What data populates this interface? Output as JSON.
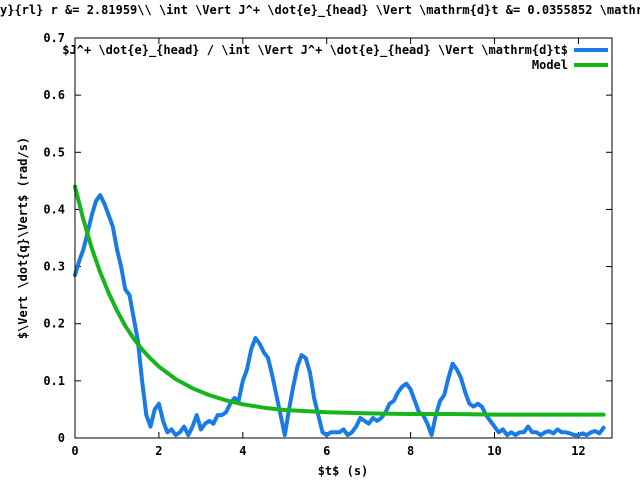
{
  "title": "y}{rl} r &= 2.81959\\\\ \\int \\Vert J^+ \\dot{e}_{head} \\Vert \\mathrm{d}t &=  0.0355852 \\mathrm",
  "chart_data": {
    "type": "line",
    "xlabel": "$t$ (s)",
    "ylabel": "$\\Vert \\dot{q}\\Vert$ (rad/s)",
    "xlim": [
      0,
      12.8
    ],
    "ylim": [
      0,
      0.7
    ],
    "xticks": [
      "0",
      "2",
      "4",
      "6",
      "8",
      "10",
      "12"
    ],
    "yticks": [
      "0",
      "0.1",
      "0.2",
      "0.3",
      "0.4",
      "0.5",
      "0.6",
      "0.7"
    ],
    "grid": false,
    "legend_position": "top-right",
    "series": [
      {
        "name": "$J^+ \\dot{e}_{head} / \\int \\Vert J^+ \\dot{e}_{head} \\Vert \\mathrm{d}t$",
        "color": "#1a7ae6",
        "x": [
          0.0,
          0.1,
          0.2,
          0.3,
          0.4,
          0.5,
          0.6,
          0.7,
          0.8,
          0.9,
          1.0,
          1.1,
          1.2,
          1.3,
          1.4,
          1.5,
          1.6,
          1.7,
          1.8,
          1.9,
          2.0,
          2.1,
          2.2,
          2.3,
          2.4,
          2.5,
          2.6,
          2.7,
          2.8,
          2.9,
          3.0,
          3.1,
          3.2,
          3.3,
          3.4,
          3.5,
          3.6,
          3.7,
          3.8,
          3.9,
          4.0,
          4.1,
          4.2,
          4.3,
          4.4,
          4.5,
          4.6,
          4.7,
          4.8,
          4.9,
          5.0,
          5.1,
          5.2,
          5.3,
          5.4,
          5.5,
          5.6,
          5.7,
          5.8,
          5.9,
          6.0,
          6.1,
          6.2,
          6.3,
          6.4,
          6.5,
          6.6,
          6.7,
          6.8,
          6.9,
          7.0,
          7.1,
          7.2,
          7.3,
          7.4,
          7.5,
          7.6,
          7.7,
          7.8,
          7.9,
          8.0,
          8.1,
          8.2,
          8.3,
          8.4,
          8.5,
          8.6,
          8.7,
          8.8,
          8.9,
          9.0,
          9.1,
          9.2,
          9.3,
          9.4,
          9.5,
          9.6,
          9.7,
          9.8,
          9.9,
          10.0,
          10.1,
          10.2,
          10.3,
          10.4,
          10.5,
          10.6,
          10.7,
          10.8,
          10.9,
          11.0,
          11.1,
          11.2,
          11.3,
          11.4,
          11.5,
          11.6,
          11.7,
          11.8,
          11.9,
          12.0,
          12.1,
          12.2,
          12.3,
          12.4,
          12.5,
          12.6
        ],
        "y": [
          0.285,
          0.31,
          0.33,
          0.36,
          0.39,
          0.415,
          0.425,
          0.41,
          0.39,
          0.37,
          0.33,
          0.3,
          0.26,
          0.25,
          0.21,
          0.17,
          0.1,
          0.04,
          0.02,
          0.05,
          0.06,
          0.03,
          0.01,
          0.015,
          0.005,
          0.01,
          0.02,
          0.005,
          0.02,
          0.04,
          0.015,
          0.025,
          0.03,
          0.025,
          0.04,
          0.04,
          0.045,
          0.06,
          0.07,
          0.065,
          0.1,
          0.12,
          0.155,
          0.175,
          0.165,
          0.15,
          0.14,
          0.11,
          0.075,
          0.04,
          0.005,
          0.05,
          0.09,
          0.125,
          0.145,
          0.14,
          0.115,
          0.07,
          0.04,
          0.01,
          0.005,
          0.01,
          0.01,
          0.01,
          0.015,
          0.005,
          0.01,
          0.02,
          0.035,
          0.03,
          0.025,
          0.035,
          0.03,
          0.035,
          0.045,
          0.06,
          0.065,
          0.08,
          0.09,
          0.095,
          0.085,
          0.065,
          0.045,
          0.04,
          0.025,
          0.005,
          0.04,
          0.065,
          0.075,
          0.105,
          0.13,
          0.12,
          0.105,
          0.08,
          0.06,
          0.055,
          0.06,
          0.055,
          0.04,
          0.03,
          0.02,
          0.01,
          0.015,
          0.005,
          0.01,
          0.005,
          0.01,
          0.01,
          0.02,
          0.01,
          0.01,
          0.005,
          0.01,
          0.012,
          0.008,
          0.015,
          0.01,
          0.01,
          0.008,
          0.005,
          0.005,
          0.008,
          0.005,
          0.01,
          0.012,
          0.008,
          0.018
        ]
      },
      {
        "name": "Model",
        "color": "#16b51a",
        "x": [
          0.0,
          0.2,
          0.4,
          0.6,
          0.8,
          1.0,
          1.2,
          1.4,
          1.6,
          1.8,
          2.0,
          2.4,
          2.8,
          3.2,
          3.6,
          4.0,
          4.5,
          5.0,
          6.0,
          7.0,
          8.0,
          9.0,
          10.0,
          11.0,
          12.0,
          12.6
        ],
        "y": [
          0.44,
          0.382,
          0.332,
          0.29,
          0.254,
          0.223,
          0.196,
          0.174,
          0.155,
          0.139,
          0.125,
          0.103,
          0.087,
          0.075,
          0.066,
          0.059,
          0.053,
          0.049,
          0.045,
          0.043,
          0.042,
          0.042,
          0.041,
          0.041,
          0.041,
          0.041
        ]
      }
    ]
  }
}
